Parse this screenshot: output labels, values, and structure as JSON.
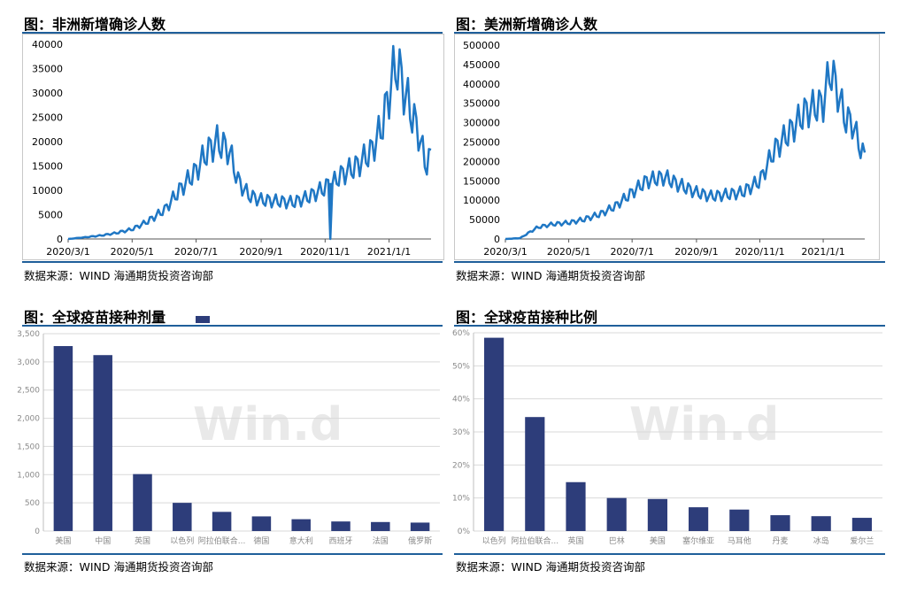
{
  "panels": {
    "africa": {
      "title": "图：非洲新增确诊人数",
      "source": "数据来源：WIND   海通期货投资咨询部"
    },
    "americas": {
      "title": "图：美洲新增确诊人数",
      "source": "数据来源：WIND   海通期货投资咨询部"
    },
    "doses": {
      "title": "图：全球疫苗接种剂量",
      "watermark": "Win.d",
      "source": "数据来源：WIND   海通期货投资咨询部"
    },
    "ratio": {
      "title": "图：全球疫苗接种比例",
      "watermark": "Win.d",
      "source": "数据来源：WIND   海通期货投资咨询部"
    }
  },
  "colors": {
    "line": "#1f77c4",
    "bar": "#2d3d7a",
    "rule": "#1f5f9a"
  },
  "chart_data": [
    {
      "type": "line",
      "title": "图：非洲新增确诊人数",
      "x_ticks": [
        "2020/3/1",
        "2020/5/1",
        "2020/7/1",
        "2020/9/1",
        "2020/11/1",
        "2021/1/1"
      ],
      "y_ticks": [
        "0",
        "5000",
        "10000",
        "15000",
        "20000",
        "25000",
        "30000",
        "35000",
        "40000"
      ],
      "ylim": [
        0,
        40000
      ],
      "x_range": [
        "2020/3/1",
        "2021/2/10"
      ],
      "series": [
        {
          "x": [
            "2020/3/1",
            "2020/3/15",
            "2020/4/1",
            "2020/4/15",
            "2020/5/1",
            "2020/5/15",
            "2020/6/1",
            "2020/6/15",
            "2020/7/1",
            "2020/7/10",
            "2020/7/20",
            "2020/8/1",
            "2020/8/10",
            "2020/8/20",
            "2020/9/1",
            "2020/9/15",
            "2020/10/1",
            "2020/10/15",
            "2020/11/1",
            "2020/11/5",
            "2020/11/6",
            "2020/11/7",
            "2020/11/15",
            "2020/12/1",
            "2020/12/15",
            "2020/12/25",
            "2021/1/1",
            "2021/1/8",
            "2021/1/15",
            "2021/1/22",
            "2021/1/29",
            "2021/2/5",
            "2021/2/10"
          ],
          "y": [
            0,
            300,
            700,
            1200,
            2000,
            3500,
            6000,
            10000,
            14000,
            17500,
            20000,
            18500,
            12000,
            9000,
            8000,
            7800,
            7500,
            8500,
            10500,
            11500,
            0,
            11000,
            13000,
            15000,
            18000,
            23000,
            30000,
            36500,
            31000,
            26000,
            22000,
            15000,
            17000
          ]
        }
      ]
    },
    {
      "type": "line",
      "title": "图：美洲新增确诊人数",
      "x_ticks": [
        "2020/3/1",
        "2020/5/1",
        "2020/7/1",
        "2020/9/1",
        "2020/11/1",
        "2021/1/1"
      ],
      "y_ticks": [
        "0",
        "50000",
        "100000",
        "150000",
        "200000",
        "250000",
        "300000",
        "350000",
        "400000",
        "450000",
        "500000"
      ],
      "ylim": [
        0,
        500000
      ],
      "x_range": [
        "2020/3/1",
        "2021/2/10"
      ],
      "series": [
        {
          "x": [
            "2020/3/1",
            "2020/3/15",
            "2020/4/1",
            "2020/4/15",
            "2020/5/1",
            "2020/5/15",
            "2020/6/1",
            "2020/6/15",
            "2020/7/1",
            "2020/7/15",
            "2020/8/1",
            "2020/8/15",
            "2020/9/1",
            "2020/9/15",
            "2020/10/1",
            "2020/10/15",
            "2020/11/1",
            "2020/11/15",
            "2020/12/1",
            "2020/12/15",
            "2021/1/1",
            "2021/1/8",
            "2021/1/15",
            "2021/1/22",
            "2021/1/29",
            "2021/2/5",
            "2021/2/10"
          ],
          "y": [
            0,
            2000,
            30000,
            38000,
            42000,
            50000,
            65000,
            85000,
            120000,
            150000,
            160000,
            140000,
            120000,
            110000,
            115000,
            120000,
            150000,
            230000,
            280000,
            330000,
            350000,
            440000,
            380000,
            310000,
            300000,
            240000,
            210000
          ]
        }
      ]
    },
    {
      "type": "bar",
      "title": "图：全球疫苗接种剂量",
      "categories": [
        "美国",
        "中国",
        "英国",
        "以色列",
        "阿拉伯联合...",
        "德国",
        "意大利",
        "西班牙",
        "法国",
        "俄罗斯"
      ],
      "values": [
        3280,
        3120,
        1010,
        500,
        340,
        260,
        210,
        170,
        160,
        150
      ],
      "y_ticks": [
        "0",
        "500",
        "1,000",
        "1,500",
        "2,000",
        "2,500",
        "3,000",
        "3,500"
      ],
      "ylim": [
        0,
        3500
      ]
    },
    {
      "type": "bar",
      "title": "图：全球疫苗接种比例",
      "categories": [
        "以色列",
        "阿拉伯联合...",
        "英国",
        "巴林",
        "美国",
        "塞尔维亚",
        "马耳他",
        "丹麦",
        "冰岛",
        "爱尔兰"
      ],
      "values": [
        58.5,
        34.5,
        14.8,
        10.0,
        9.7,
        7.2,
        6.5,
        4.8,
        4.5,
        4.0
      ],
      "y_ticks": [
        "0%",
        "10%",
        "20%",
        "30%",
        "40%",
        "50%",
        "60%"
      ],
      "ylim": [
        0,
        60
      ]
    }
  ]
}
